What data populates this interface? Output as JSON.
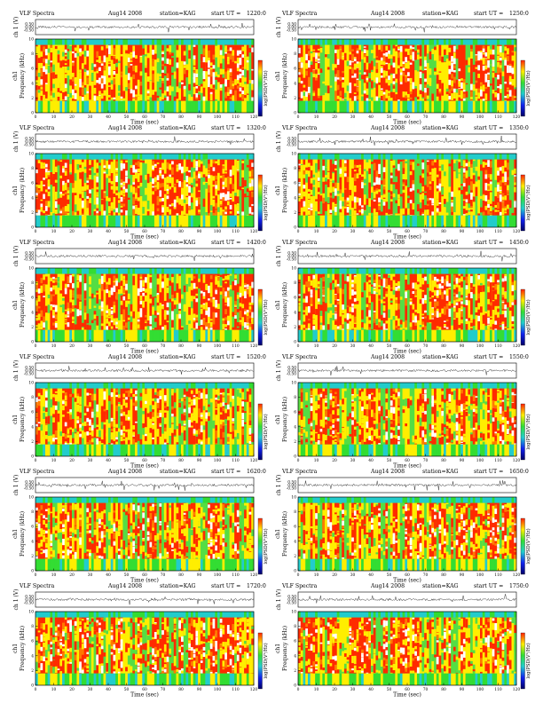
{
  "header": {
    "title": "VLF Spectra",
    "date": "Aug14 2008",
    "station": "station=KAG",
    "start_prefix": "start  UT ="
  },
  "axis_labels": {
    "channel": "ch 1 (V)",
    "channel_spec": "ch1",
    "frequency": "Frequency (kHz)",
    "time": "Time  (sec)",
    "colorbar": "log(PSD(V²/Hz)"
  },
  "colorbar_colors": [
    "#ff2200",
    "#ffee00",
    "#33dd33",
    "#22cccc",
    "#1122ee",
    "#000066"
  ],
  "chart_data": [
    {
      "type": "heatmap",
      "start_ut": "1220:0",
      "x": [
        0,
        10,
        20,
        30,
        40,
        50,
        60,
        70,
        80,
        90,
        100,
        110,
        120
      ],
      "y": [
        0,
        2,
        4,
        6,
        8,
        10
      ],
      "waveform_y": [
        -0.5,
        0.0,
        0.5
      ],
      "xlim": [
        0,
        120
      ],
      "ylim": [
        0,
        10
      ],
      "density": 0.62
    },
    {
      "type": "heatmap",
      "start_ut": "1250:0",
      "x": [
        0,
        10,
        20,
        30,
        40,
        50,
        60,
        70,
        80,
        90,
        100,
        110,
        120
      ],
      "y": [
        0,
        2,
        4,
        6,
        8,
        10
      ],
      "waveform_y": [
        -0.5,
        0.0,
        0.5
      ],
      "xlim": [
        0,
        120
      ],
      "ylim": [
        0,
        10
      ],
      "density": 0.6
    },
    {
      "type": "heatmap",
      "start_ut": "1320:0",
      "x": [
        0,
        10,
        20,
        30,
        40,
        50,
        60,
        70,
        80,
        90,
        100,
        110,
        120
      ],
      "y": [
        0,
        2,
        4,
        6,
        8,
        10
      ],
      "waveform_y": [
        -0.5,
        0.0,
        0.5
      ],
      "xlim": [
        0,
        120
      ],
      "ylim": [
        0,
        10
      ],
      "density": 0.56
    },
    {
      "type": "heatmap",
      "start_ut": "1350:0",
      "x": [
        0,
        10,
        20,
        30,
        40,
        50,
        60,
        70,
        80,
        90,
        100,
        110,
        120
      ],
      "y": [
        0,
        2,
        4,
        6,
        8,
        10
      ],
      "waveform_y": [
        -0.5,
        0.0,
        0.5
      ],
      "xlim": [
        0,
        120
      ],
      "ylim": [
        0,
        10
      ],
      "density": 0.55
    },
    {
      "type": "heatmap",
      "start_ut": "1420:0",
      "x": [
        0,
        10,
        20,
        30,
        40,
        50,
        60,
        70,
        80,
        90,
        100,
        110,
        120
      ],
      "y": [
        0,
        2,
        4,
        6,
        8,
        10
      ],
      "waveform_y": [
        -0.5,
        0.0,
        0.5
      ],
      "xlim": [
        0,
        120
      ],
      "ylim": [
        0,
        10
      ],
      "density": 0.52
    },
    {
      "type": "heatmap",
      "start_ut": "1450:0",
      "x": [
        0,
        10,
        20,
        30,
        40,
        50,
        60,
        70,
        80,
        90,
        100,
        110,
        120
      ],
      "y": [
        0,
        2,
        4,
        6,
        8,
        10
      ],
      "waveform_y": [
        -0.5,
        0.0,
        0.5
      ],
      "xlim": [
        0,
        120
      ],
      "ylim": [
        0,
        10
      ],
      "density": 0.5
    },
    {
      "type": "heatmap",
      "start_ut": "1520:0",
      "x": [
        0,
        10,
        20,
        30,
        40,
        50,
        60,
        70,
        80,
        90,
        100,
        110,
        120
      ],
      "y": [
        0,
        2,
        4,
        6,
        8,
        10
      ],
      "waveform_y": [
        -0.5,
        0.0,
        0.5
      ],
      "xlim": [
        0,
        120
      ],
      "ylim": [
        0,
        10
      ],
      "density": 0.46
    },
    {
      "type": "heatmap",
      "start_ut": "1550:0",
      "x": [
        0,
        10,
        20,
        30,
        40,
        50,
        60,
        70,
        80,
        90,
        100,
        110,
        120
      ],
      "y": [
        0,
        2,
        4,
        6,
        8,
        10
      ],
      "waveform_y": [
        -0.5,
        0.0,
        0.5
      ],
      "xlim": [
        0,
        120
      ],
      "ylim": [
        0,
        10
      ],
      "density": 0.44
    },
    {
      "type": "heatmap",
      "start_ut": "1620:0",
      "x": [
        0,
        10,
        20,
        30,
        40,
        50,
        60,
        70,
        80,
        90,
        100,
        110,
        120
      ],
      "y": [
        0,
        2,
        4,
        6,
        8,
        10
      ],
      "waveform_y": [
        -0.5,
        0.0,
        0.5
      ],
      "xlim": [
        0,
        120
      ],
      "ylim": [
        0,
        10
      ],
      "density": 0.5
    },
    {
      "type": "heatmap",
      "start_ut": "1650:0",
      "x": [
        0,
        10,
        20,
        30,
        40,
        50,
        60,
        70,
        80,
        90,
        100,
        110,
        120
      ],
      "y": [
        0,
        2,
        4,
        6,
        8,
        10
      ],
      "waveform_y": [
        -0.5,
        0.0,
        0.5
      ],
      "xlim": [
        0,
        120
      ],
      "ylim": [
        0,
        10
      ],
      "density": 0.48
    },
    {
      "type": "heatmap",
      "start_ut": "1720:0",
      "x": [
        0,
        10,
        20,
        30,
        40,
        50,
        60,
        70,
        80,
        90,
        100,
        110,
        120
      ],
      "y": [
        0,
        2,
        4,
        6,
        8,
        10
      ],
      "waveform_y": [
        -0.5,
        0.0,
        0.5
      ],
      "xlim": [
        0,
        120
      ],
      "ylim": [
        0,
        10
      ],
      "density": 0.6
    },
    {
      "type": "heatmap",
      "start_ut": "1750:0",
      "x": [
        0,
        10,
        20,
        30,
        40,
        50,
        60,
        70,
        80,
        90,
        100,
        110,
        120
      ],
      "y": [
        0,
        2,
        4,
        6,
        8,
        10
      ],
      "waveform_y": [
        -0.5,
        0.0,
        0.5
      ],
      "xlim": [
        0,
        120
      ],
      "ylim": [
        0,
        10
      ],
      "density": 0.58
    }
  ]
}
